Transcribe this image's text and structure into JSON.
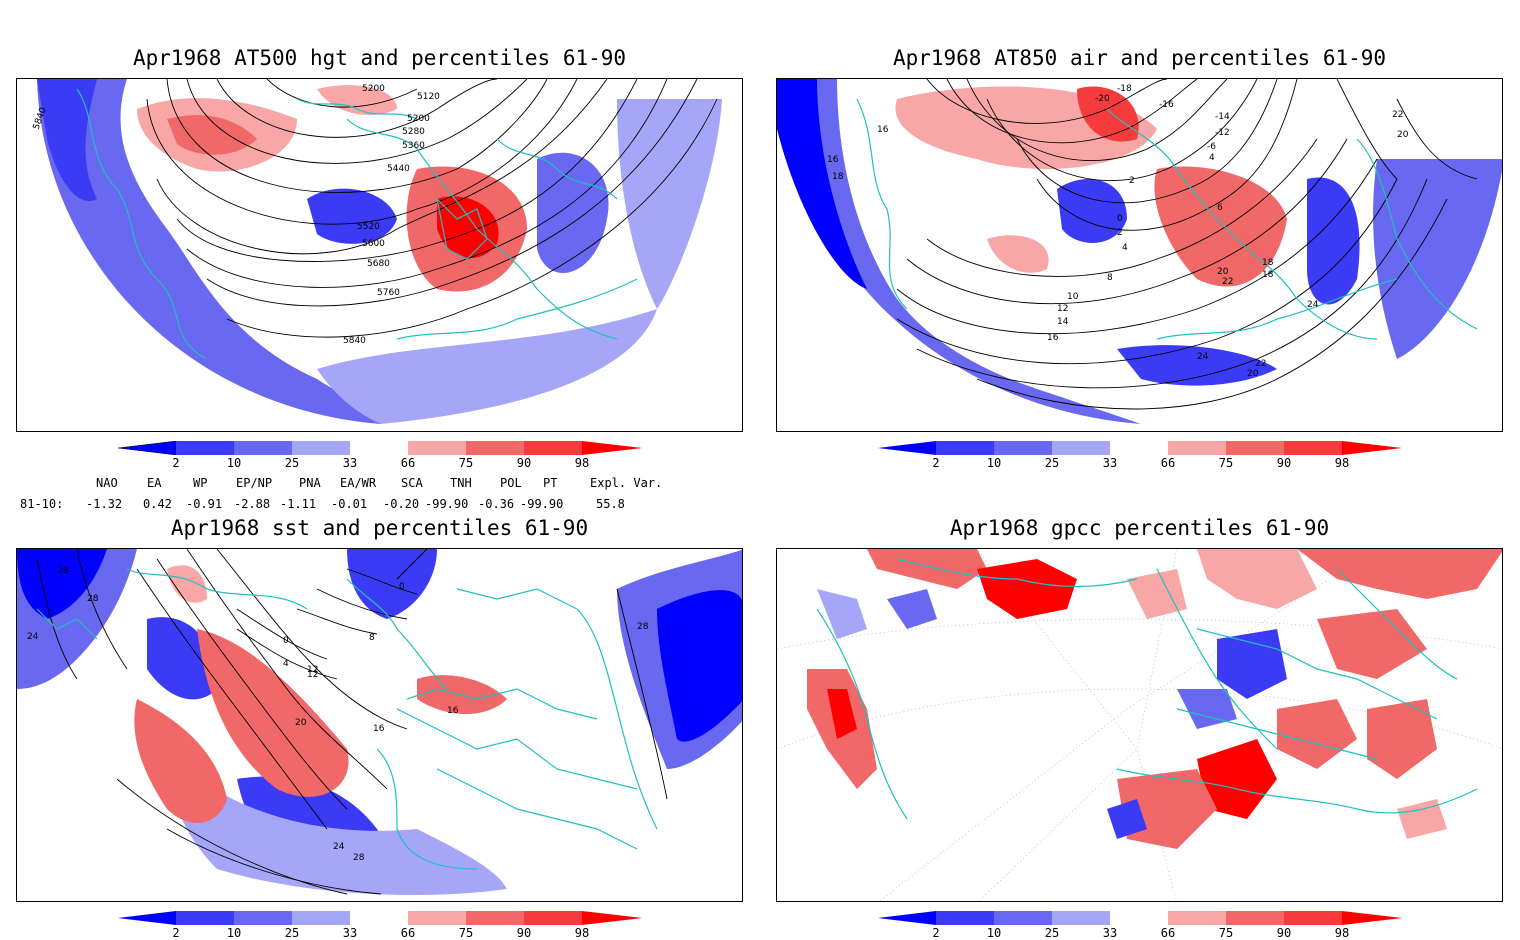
{
  "panels": [
    {
      "title": "Apr1968 AT500 hgt and percentiles 61-90",
      "contours": [
        "5120",
        "5200",
        "5200",
        "5280",
        "5360",
        "5440",
        "5520",
        "5600",
        "5680",
        "5760",
        "5840",
        "5840"
      ]
    },
    {
      "title": "Apr1968 AT850 air and percentiles 61-90",
      "contours": [
        "-20",
        "-18",
        "-16",
        "-14",
        "-12",
        "-6",
        "4",
        "2",
        "0",
        "2",
        "4",
        "6",
        "8",
        "10",
        "12",
        "14",
        "16",
        "16",
        "16",
        "18",
        "18",
        "18",
        "20",
        "20",
        "22",
        "22",
        "24",
        "24",
        "20",
        "22"
      ]
    },
    {
      "title": "Apr1968 sst and percentiles 61-90",
      "contours": [
        "28",
        "28",
        "24",
        "0",
        "0",
        "4",
        "8",
        "12",
        "16",
        "20",
        "24",
        "28",
        "16",
        "28",
        "12"
      ]
    },
    {
      "title": "Apr1968 gpcc percentiles 61-90",
      "contours": []
    }
  ],
  "colorbar": {
    "labels": [
      "2",
      "10",
      "25",
      "33",
      "66",
      "75",
      "90",
      "98"
    ],
    "colors": [
      "#0000ff",
      "#3b3bf5",
      "#6868f0",
      "#a6a6f8",
      "#ffffff",
      "#f8a6a6",
      "#f06868",
      "#f53b3b",
      "#ff0000"
    ]
  },
  "indices": {
    "header": [
      "NAO",
      "EA",
      "WP",
      "EP/NP",
      "PNA",
      "EA/WR",
      "SCA",
      "TNH",
      "POL",
      "PT",
      "Expl. Var."
    ],
    "row_label": "81-10:",
    "values": [
      "-1.32",
      "0.42",
      "-0.91",
      "-2.88",
      "-1.11",
      "-0.01",
      "-0.20",
      "-99.90",
      "-0.36",
      "-99.90",
      "55.8"
    ]
  }
}
